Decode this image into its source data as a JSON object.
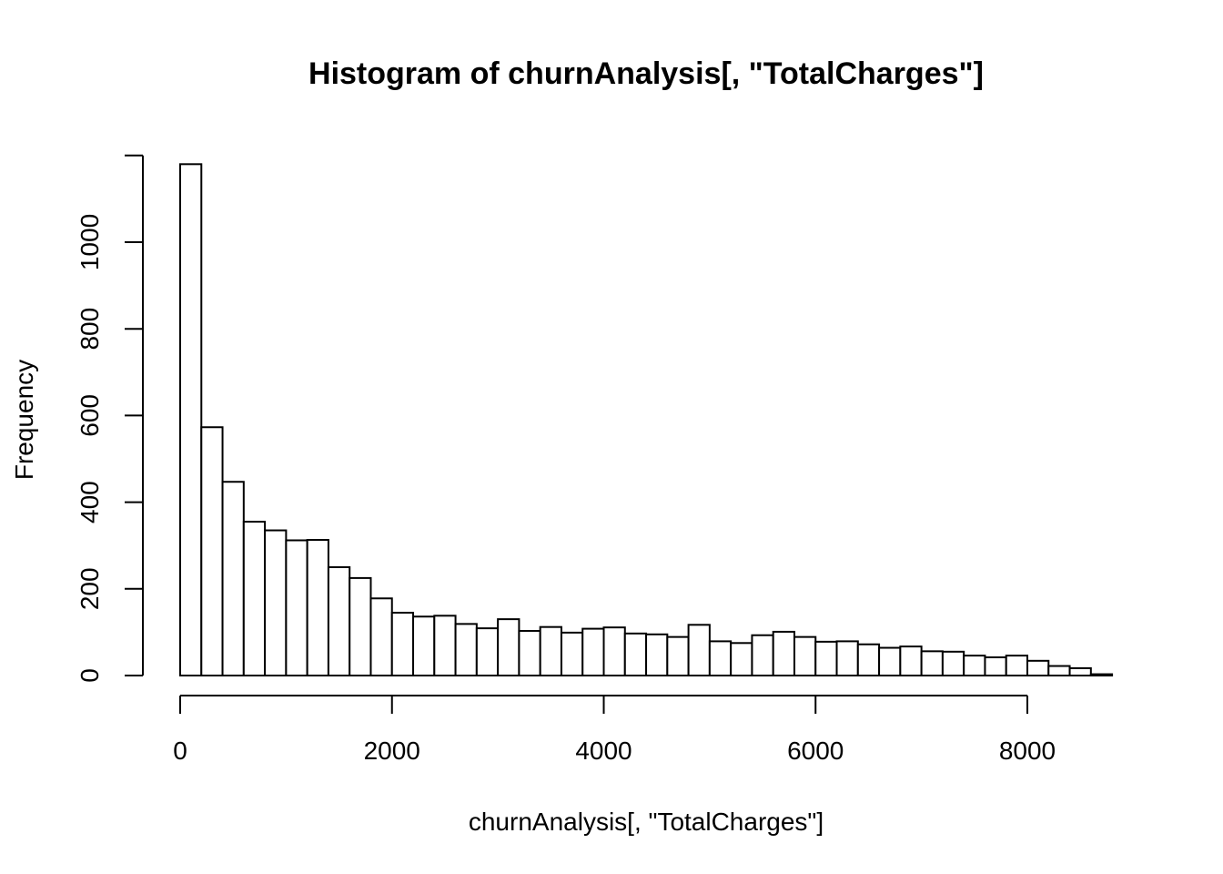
{
  "chart_data": {
    "type": "bar",
    "title": "Histogram of churnAnalysis[, \"TotalCharges\"]",
    "xlabel": "churnAnalysis[, \"TotalCharges\"]",
    "ylabel": "Frequency",
    "xlim": [
      0,
      8800
    ],
    "ylim": [
      0,
      1200
    ],
    "bin_width": 200,
    "x_ticks": [
      0,
      2000,
      4000,
      6000,
      8000
    ],
    "y_ticks": [
      0,
      200,
      400,
      600,
      800,
      1000
    ],
    "grid": false,
    "legend": "none",
    "bin_starts": [
      0,
      200,
      400,
      600,
      800,
      1000,
      1200,
      1400,
      1600,
      1800,
      2000,
      2200,
      2400,
      2600,
      2800,
      3000,
      3200,
      3400,
      3600,
      3800,
      4000,
      4200,
      4400,
      4600,
      4800,
      5000,
      5200,
      5400,
      5600,
      5800,
      6000,
      6200,
      6400,
      6600,
      6800,
      7000,
      7200,
      7400,
      7600,
      7800,
      8000,
      8200,
      8400,
      8600
    ],
    "values": [
      1180,
      573,
      447,
      355,
      335,
      312,
      313,
      250,
      225,
      178,
      145,
      136,
      138,
      119,
      109,
      130,
      103,
      112,
      99,
      108,
      111,
      97,
      95,
      89,
      117,
      79,
      75,
      93,
      101,
      89,
      78,
      79,
      72,
      64,
      67,
      56,
      55,
      46,
      42,
      46,
      34,
      22,
      17,
      3
    ]
  }
}
